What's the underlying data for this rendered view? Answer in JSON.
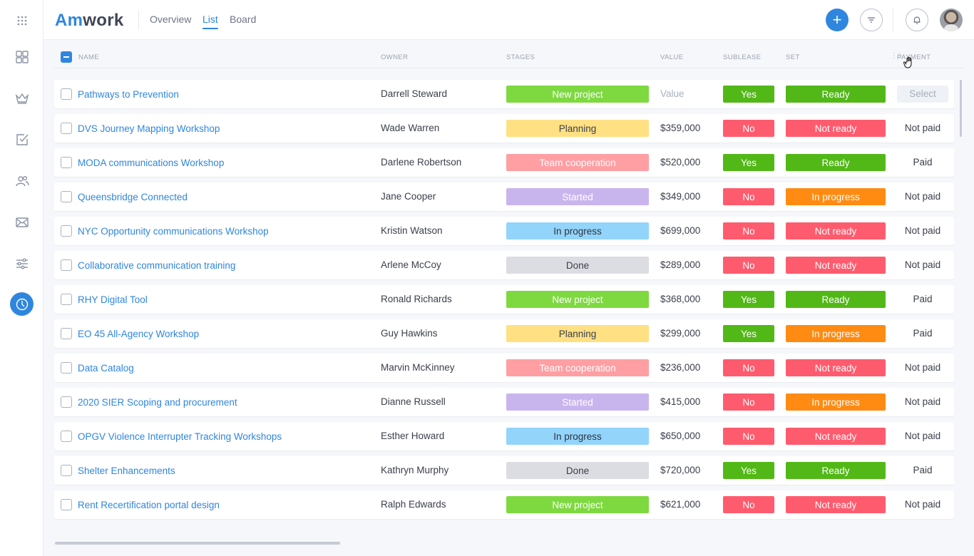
{
  "header": {
    "logo_am": "Am",
    "logo_rest": "work",
    "tabs": [
      {
        "label": "Overview",
        "active": false
      },
      {
        "label": "List",
        "active": true
      },
      {
        "label": "Board",
        "active": false
      }
    ],
    "add_icon": "+"
  },
  "sidebar": {
    "items": [
      "grid-menu-icon",
      "dashboard-icon",
      "crown-icon",
      "checkbox-icon",
      "users-icon",
      "mail-icon",
      "sliders-icon",
      "clock-icon"
    ],
    "active": "clock-icon"
  },
  "table": {
    "columns": {
      "name": "NAME",
      "owner": "OWNER",
      "stages": "STAGES",
      "value": "VALUE",
      "sublease": "SUBLEASE",
      "set": "SET",
      "payment": "PAYMENT"
    },
    "rows": [
      {
        "name": "Pathways to Prevention",
        "owner": "Darrell Steward",
        "stage": "New project",
        "value": "Value",
        "sublease": "Yes",
        "set": "Ready",
        "payment": "Select"
      },
      {
        "name": "DVS Journey Mapping Workshop",
        "owner": "Wade Warren",
        "stage": "Planning",
        "value": "$359,000",
        "sublease": "No",
        "set": "Not ready",
        "payment": "Not paid"
      },
      {
        "name": "MODA communications Workshop",
        "owner": "Darlene Robertson",
        "stage": "Team cooperation",
        "value": "$520,000",
        "sublease": "Yes",
        "set": "Ready",
        "payment": "Paid"
      },
      {
        "name": "Queensbridge Connected",
        "owner": "Jane Cooper",
        "stage": "Started",
        "value": "$349,000",
        "sublease": "No",
        "set": "In progress",
        "payment": "Not paid"
      },
      {
        "name": "NYC Opportunity communications Workshop",
        "owner": "Kristin Watson",
        "stage": "In progress",
        "value": "$699,000",
        "sublease": "No",
        "set": "Not ready",
        "payment": "Not paid"
      },
      {
        "name": "Collaborative communication training",
        "owner": "Arlene McCoy",
        "stage": "Done",
        "value": "$289,000",
        "sublease": "No",
        "set": "Not ready",
        "payment": "Not paid"
      },
      {
        "name": "RHY Digital Tool",
        "owner": "Ronald Richards",
        "stage": "New project",
        "value": "$368,000",
        "sublease": "Yes",
        "set": "Ready",
        "payment": "Paid"
      },
      {
        "name": "EO 45 All-Agency Workshop",
        "owner": "Guy Hawkins",
        "stage": "Planning",
        "value": "$299,000",
        "sublease": "Yes",
        "set": "In progress",
        "payment": "Paid"
      },
      {
        "name": "Data Catalog",
        "owner": "Marvin McKinney",
        "stage": "Team cooperation",
        "value": "$236,000",
        "sublease": "No",
        "set": "Not ready",
        "payment": "Not paid"
      },
      {
        "name": "2020 SIER Scoping and procurement",
        "owner": "Dianne Russell",
        "stage": "Started",
        "value": "$415,000",
        "sublease": "No",
        "set": "In progress",
        "payment": "Not paid"
      },
      {
        "name": "OPGV Violence Interrupter Tracking Workshops",
        "owner": "Esther Howard",
        "stage": "In progress",
        "value": "$650,000",
        "sublease": "No",
        "set": "Not ready",
        "payment": "Not paid"
      },
      {
        "name": "Shelter Enhancements",
        "owner": "Kathryn Murphy",
        "stage": "Done",
        "value": "$720,000",
        "sublease": "Yes",
        "set": "Ready",
        "payment": "Paid"
      },
      {
        "name": "Rent Recertification portal design",
        "owner": "Ralph Edwards",
        "stage": "New project",
        "value": "$621,000",
        "sublease": "No",
        "set": "Not ready",
        "payment": "Not paid"
      }
    ]
  },
  "colors": {
    "accent": "#2f86de",
    "stages": {
      "New project": {
        "bg": "#7ed940",
        "fg": "#ffffff"
      },
      "Planning": {
        "bg": "#ffe083",
        "fg": "#3a3f4a"
      },
      "Team cooperation": {
        "bg": "#ff9fa3",
        "fg": "#ffffff"
      },
      "Started": {
        "bg": "#c9b5ee",
        "fg": "#ffffff"
      },
      "In progress": {
        "bg": "#93d4fb",
        "fg": "#2c3340"
      },
      "Done": {
        "bg": "#dcdde2",
        "fg": "#3a3f4a"
      }
    },
    "sublease": {
      "Yes": "#52b817",
      "No": "#ff5b6e"
    },
    "set": {
      "Ready": "#52b817",
      "Not ready": "#ff5b6e",
      "In progress": "#ff8b12"
    }
  }
}
